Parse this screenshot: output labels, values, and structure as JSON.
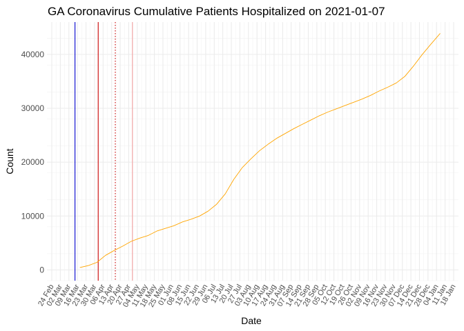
{
  "chart_data": {
    "type": "line",
    "title": "GA Coronavirus Cumulative Patients Hospitalized on 2021-01-07",
    "xlabel": "Date",
    "ylabel": "Count",
    "x_range": [
      "2020-02-24",
      "2021-01-18"
    ],
    "ylim": [
      -2000,
      46000
    ],
    "y_ticks": [
      0,
      10000,
      20000,
      30000,
      40000
    ],
    "y_tick_labels": [
      "0",
      "10000",
      "20000",
      "30000",
      "40000"
    ],
    "x_ticks": [
      "2020-02-24",
      "2020-03-02",
      "2020-03-09",
      "2020-03-16",
      "2020-03-23",
      "2020-03-30",
      "2020-04-06",
      "2020-04-13",
      "2020-04-20",
      "2020-04-27",
      "2020-05-04",
      "2020-05-11",
      "2020-05-18",
      "2020-05-25",
      "2020-06-01",
      "2020-06-08",
      "2020-06-15",
      "2020-06-22",
      "2020-06-29",
      "2020-07-06",
      "2020-07-13",
      "2020-07-20",
      "2020-07-27",
      "2020-08-03",
      "2020-08-10",
      "2020-08-17",
      "2020-08-24",
      "2020-08-31",
      "2020-09-07",
      "2020-09-14",
      "2020-09-21",
      "2020-09-28",
      "2020-10-05",
      "2020-10-12",
      "2020-10-19",
      "2020-10-26",
      "2020-11-02",
      "2020-11-09",
      "2020-11-16",
      "2020-11-23",
      "2020-11-30",
      "2020-12-07",
      "2020-12-14",
      "2020-12-21",
      "2020-12-28",
      "2021-01-04",
      "2021-01-11",
      "2021-01-18"
    ],
    "x_tick_labels": [
      "24 Feb",
      "02 Mar",
      "09 Mar",
      "16 Mar",
      "23 Mar",
      "30 Mar",
      "06 Apr",
      "13 Apr",
      "20 Apr",
      "27 Apr",
      "04 May",
      "11 May",
      "18 May",
      "25 May",
      "01 Jun",
      "08 Jun",
      "15 Jun",
      "22 Jun",
      "29 Jun",
      "06 Jul",
      "13 Jul",
      "20 Jul",
      "27 Jul",
      "03 Aug",
      "10 Aug",
      "17 Aug",
      "24 Aug",
      "31 Aug",
      "07 Sep",
      "14 Sep",
      "21 Sep",
      "28 Sep",
      "05 Oct",
      "12 Oct",
      "19 Oct",
      "26 Oct",
      "02 Nov",
      "09 Nov",
      "16 Nov",
      "23 Nov",
      "30 Nov",
      "07 Dec",
      "14 Dec",
      "21 Dec",
      "28 Dec",
      "04 Jan",
      "11 Jan",
      "18 Jan"
    ],
    "grid": true,
    "series": [
      {
        "color": "#ffa500",
        "x": [
          "2020-03-18",
          "2020-03-25",
          "2020-04-01",
          "2020-04-08",
          "2020-04-15",
          "2020-04-22",
          "2020-04-29",
          "2020-05-06",
          "2020-05-13",
          "2020-05-20",
          "2020-05-27",
          "2020-06-03",
          "2020-06-10",
          "2020-06-17",
          "2020-06-24",
          "2020-07-01",
          "2020-07-08",
          "2020-07-15",
          "2020-07-22",
          "2020-07-29",
          "2020-08-05",
          "2020-08-12",
          "2020-08-19",
          "2020-08-26",
          "2020-09-02",
          "2020-09-09",
          "2020-09-16",
          "2020-09-23",
          "2020-09-30",
          "2020-10-07",
          "2020-10-14",
          "2020-10-21",
          "2020-10-28",
          "2020-11-04",
          "2020-11-11",
          "2020-11-18",
          "2020-11-25",
          "2020-12-02",
          "2020-12-09",
          "2020-12-16",
          "2020-12-23",
          "2020-12-30",
          "2021-01-07"
        ],
        "values": [
          450,
          800,
          1400,
          2700,
          3600,
          4400,
          5300,
          5900,
          6400,
          7200,
          7700,
          8200,
          8900,
          9400,
          10000,
          10900,
          12200,
          14100,
          16800,
          19000,
          20600,
          22100,
          23300,
          24400,
          25300,
          26200,
          27000,
          27800,
          28600,
          29300,
          29900,
          30500,
          31100,
          31700,
          32400,
          33200,
          33900,
          34700,
          35900,
          37800,
          39900,
          41800,
          43900
        ]
      }
    ],
    "reference_lines": [
      {
        "x": "2020-03-14",
        "color": "#0000cd",
        "style": "solid"
      },
      {
        "x": "2020-04-02",
        "color": "#cc0000",
        "style": "solid"
      },
      {
        "x": "2020-04-16",
        "color": "#cc0000",
        "style": "dotted"
      },
      {
        "x": "2020-04-30",
        "color": "#f4a0a0",
        "style": "solid"
      }
    ]
  }
}
